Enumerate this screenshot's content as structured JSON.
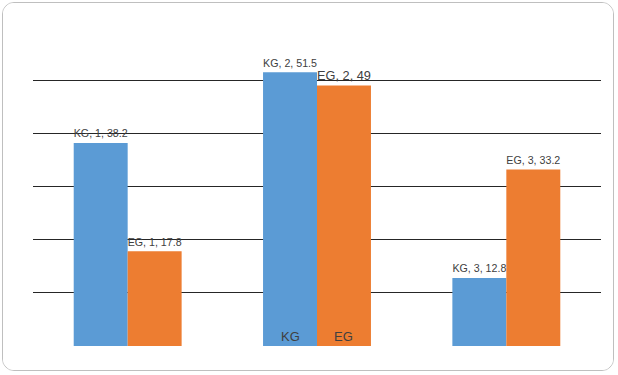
{
  "chart_data": {
    "type": "bar",
    "categories": [
      "1",
      "2",
      "3"
    ],
    "series": [
      {
        "name": "KG",
        "color": "#5b9bd5",
        "values": [
          38.2,
          51.5,
          12.8
        ],
        "value_labels": [
          "KG, 1, 38.2",
          "KG, 2, 51.5",
          "KG, 3, 12.8"
        ]
      },
      {
        "name": "EG",
        "color": "#ed7d31",
        "values": [
          17.8,
          49,
          33.2
        ],
        "value_labels": [
          "EG, 1, 17.8",
          "EG, 2, 49",
          "EG, 3, 33.2"
        ]
      }
    ],
    "annotations": [
      {
        "text": "KG",
        "category": "2",
        "series": "KG"
      },
      {
        "text": "EG",
        "category": "2",
        "series": "EG"
      }
    ],
    "ylim": [
      0,
      60
    ],
    "yticks": [
      0,
      10,
      20,
      30,
      40,
      50,
      60
    ],
    "grid": true,
    "data_labels": true,
    "tick_labels": false
  }
}
